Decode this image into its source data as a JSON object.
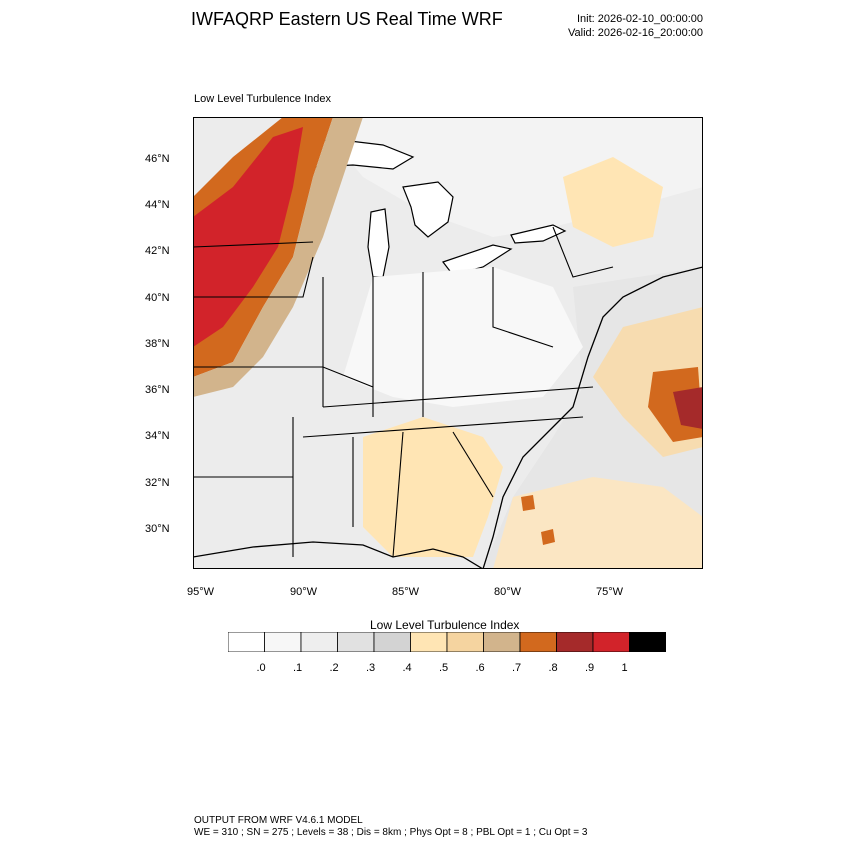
{
  "header": {
    "title": "IWFAQRP Eastern US Real Time WRF",
    "init": "Init: 2026-02-10_00:00:00",
    "valid": "Valid: 2026-02-16_20:00:00"
  },
  "map": {
    "subtitle": "Low Level Turbulence Index",
    "lat_ticks": [
      "46°N",
      "44°N",
      "42°N",
      "40°N",
      "38°N",
      "36°N",
      "34°N",
      "32°N",
      "30°N"
    ],
    "lon_ticks": [
      "95°W",
      "90°W",
      "85°W",
      "80°W",
      "75°W"
    ]
  },
  "colorbar": {
    "title": "Low Level Turbulence Index",
    "labels": [
      ".0",
      ".1",
      ".2",
      ".3",
      ".4",
      ".5",
      ".6",
      ".7",
      ".8",
      ".9",
      "1"
    ],
    "colors": [
      "#ffffff",
      "#f7f7f7",
      "#eeeeee",
      "#e1e1e1",
      "#d3d3d3",
      "#ffe5b4",
      "#f5d4a0",
      "#d2b48c",
      "#d2691e",
      "#a52a2a",
      "#d2232a",
      "#000000"
    ]
  },
  "footer": {
    "line1": "OUTPUT FROM WRF V4.6.1 MODEL",
    "line2": "WE = 310 ; SN = 275 ; Levels = 38 ; Dis = 8km ; Phys Opt = 8 ; PBL Opt = 1 ; Cu Opt = 3"
  }
}
